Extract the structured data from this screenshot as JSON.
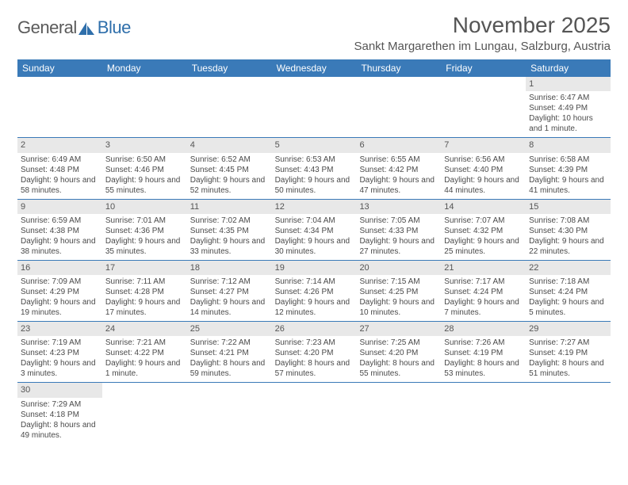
{
  "logo": {
    "text1": "General",
    "text2": "Blue"
  },
  "title": "November 2025",
  "location": "Sankt Margarethen im Lungau, Salzburg, Austria",
  "colors": {
    "header_bg": "#3a7ab8",
    "header_text": "#ffffff",
    "daynum_bg": "#e8e8e8",
    "row_border": "#3a7ab8",
    "body_text": "#4a4a4a",
    "title_text": "#555555"
  },
  "weekdays": [
    "Sunday",
    "Monday",
    "Tuesday",
    "Wednesday",
    "Thursday",
    "Friday",
    "Saturday"
  ],
  "weeks": [
    [
      null,
      null,
      null,
      null,
      null,
      null,
      {
        "n": "1",
        "sunrise": "6:47 AM",
        "sunset": "4:49 PM",
        "daylight": "10 hours and 1 minute."
      }
    ],
    [
      {
        "n": "2",
        "sunrise": "6:49 AM",
        "sunset": "4:48 PM",
        "daylight": "9 hours and 58 minutes."
      },
      {
        "n": "3",
        "sunrise": "6:50 AM",
        "sunset": "4:46 PM",
        "daylight": "9 hours and 55 minutes."
      },
      {
        "n": "4",
        "sunrise": "6:52 AM",
        "sunset": "4:45 PM",
        "daylight": "9 hours and 52 minutes."
      },
      {
        "n": "5",
        "sunrise": "6:53 AM",
        "sunset": "4:43 PM",
        "daylight": "9 hours and 50 minutes."
      },
      {
        "n": "6",
        "sunrise": "6:55 AM",
        "sunset": "4:42 PM",
        "daylight": "9 hours and 47 minutes."
      },
      {
        "n": "7",
        "sunrise": "6:56 AM",
        "sunset": "4:40 PM",
        "daylight": "9 hours and 44 minutes."
      },
      {
        "n": "8",
        "sunrise": "6:58 AM",
        "sunset": "4:39 PM",
        "daylight": "9 hours and 41 minutes."
      }
    ],
    [
      {
        "n": "9",
        "sunrise": "6:59 AM",
        "sunset": "4:38 PM",
        "daylight": "9 hours and 38 minutes."
      },
      {
        "n": "10",
        "sunrise": "7:01 AM",
        "sunset": "4:36 PM",
        "daylight": "9 hours and 35 minutes."
      },
      {
        "n": "11",
        "sunrise": "7:02 AM",
        "sunset": "4:35 PM",
        "daylight": "9 hours and 33 minutes."
      },
      {
        "n": "12",
        "sunrise": "7:04 AM",
        "sunset": "4:34 PM",
        "daylight": "9 hours and 30 minutes."
      },
      {
        "n": "13",
        "sunrise": "7:05 AM",
        "sunset": "4:33 PM",
        "daylight": "9 hours and 27 minutes."
      },
      {
        "n": "14",
        "sunrise": "7:07 AM",
        "sunset": "4:32 PM",
        "daylight": "9 hours and 25 minutes."
      },
      {
        "n": "15",
        "sunrise": "7:08 AM",
        "sunset": "4:30 PM",
        "daylight": "9 hours and 22 minutes."
      }
    ],
    [
      {
        "n": "16",
        "sunrise": "7:09 AM",
        "sunset": "4:29 PM",
        "daylight": "9 hours and 19 minutes."
      },
      {
        "n": "17",
        "sunrise": "7:11 AM",
        "sunset": "4:28 PM",
        "daylight": "9 hours and 17 minutes."
      },
      {
        "n": "18",
        "sunrise": "7:12 AM",
        "sunset": "4:27 PM",
        "daylight": "9 hours and 14 minutes."
      },
      {
        "n": "19",
        "sunrise": "7:14 AM",
        "sunset": "4:26 PM",
        "daylight": "9 hours and 12 minutes."
      },
      {
        "n": "20",
        "sunrise": "7:15 AM",
        "sunset": "4:25 PM",
        "daylight": "9 hours and 10 minutes."
      },
      {
        "n": "21",
        "sunrise": "7:17 AM",
        "sunset": "4:24 PM",
        "daylight": "9 hours and 7 minutes."
      },
      {
        "n": "22",
        "sunrise": "7:18 AM",
        "sunset": "4:24 PM",
        "daylight": "9 hours and 5 minutes."
      }
    ],
    [
      {
        "n": "23",
        "sunrise": "7:19 AM",
        "sunset": "4:23 PM",
        "daylight": "9 hours and 3 minutes."
      },
      {
        "n": "24",
        "sunrise": "7:21 AM",
        "sunset": "4:22 PM",
        "daylight": "9 hours and 1 minute."
      },
      {
        "n": "25",
        "sunrise": "7:22 AM",
        "sunset": "4:21 PM",
        "daylight": "8 hours and 59 minutes."
      },
      {
        "n": "26",
        "sunrise": "7:23 AM",
        "sunset": "4:20 PM",
        "daylight": "8 hours and 57 minutes."
      },
      {
        "n": "27",
        "sunrise": "7:25 AM",
        "sunset": "4:20 PM",
        "daylight": "8 hours and 55 minutes."
      },
      {
        "n": "28",
        "sunrise": "7:26 AM",
        "sunset": "4:19 PM",
        "daylight": "8 hours and 53 minutes."
      },
      {
        "n": "29",
        "sunrise": "7:27 AM",
        "sunset": "4:19 PM",
        "daylight": "8 hours and 51 minutes."
      }
    ],
    [
      {
        "n": "30",
        "sunrise": "7:29 AM",
        "sunset": "4:18 PM",
        "daylight": "8 hours and 49 minutes."
      },
      null,
      null,
      null,
      null,
      null,
      null
    ]
  ],
  "labels": {
    "sunrise": "Sunrise: ",
    "sunset": "Sunset: ",
    "daylight": "Daylight: "
  }
}
